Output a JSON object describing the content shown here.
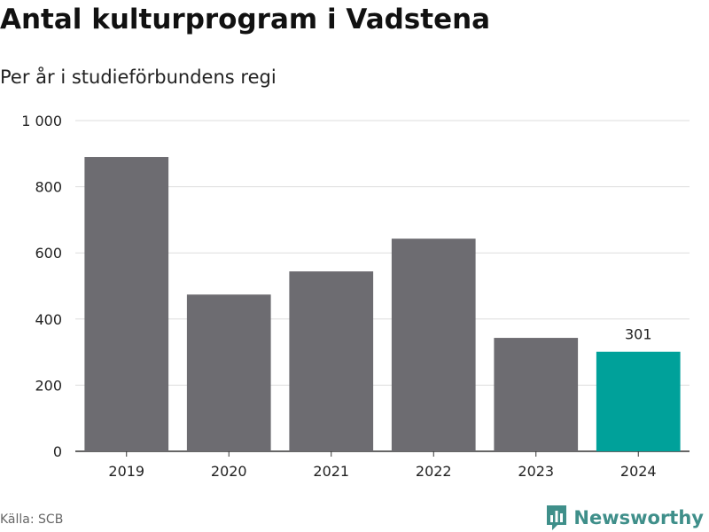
{
  "header": {
    "title": "Antal kulturprogram i Vadstena",
    "subtitle": "Per år i studieförbundens regi"
  },
  "footer": {
    "source": "Källa: SCB",
    "brand": "Newsworthy",
    "brand_icon": "newsworthy-logo-icon"
  },
  "colors": {
    "bar": "#6d6c71",
    "highlight": "#00a19a",
    "grid": "#dddddd",
    "axis": "#333333",
    "text": "#222222"
  },
  "chart_data": {
    "type": "bar",
    "title": "Antal kulturprogram i Vadstena",
    "subtitle": "Per år i studieförbundens regi",
    "categories": [
      "2019",
      "2020",
      "2021",
      "2022",
      "2023",
      "2024"
    ],
    "values": [
      890,
      474,
      544,
      643,
      343,
      301
    ],
    "highlight_index": 5,
    "data_labels": [
      {
        "index": 5,
        "text": "301"
      }
    ],
    "ylim": [
      0,
      1000
    ],
    "yticks": [
      0,
      200,
      400,
      600,
      800,
      1000
    ],
    "ytick_labels": [
      "0",
      "200",
      "400",
      "600",
      "800",
      "1 000"
    ],
    "grid": true,
    "xlabel": "",
    "ylabel": ""
  }
}
